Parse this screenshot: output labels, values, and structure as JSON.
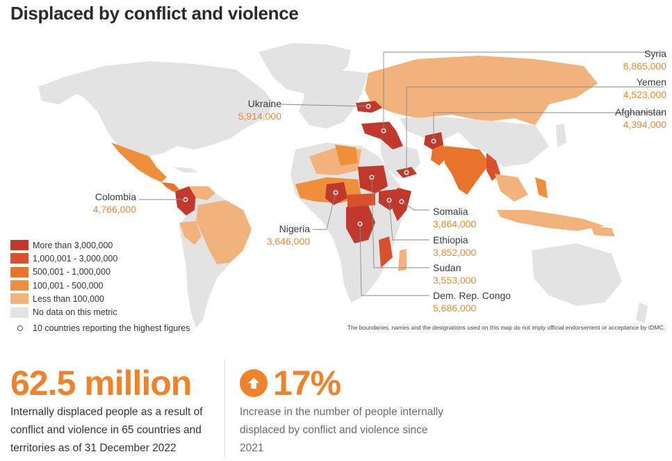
{
  "title": "Displaced by conflict and violence",
  "colors": {
    "more_than_3m": "#c0392b",
    "m1_to_3m": "#d9502c",
    "k500_to_1m": "#e8742b",
    "k100_to_500k": "#ef8f3a",
    "less_than_100k": "#f2b27c",
    "no_data": "#e3e3e3",
    "accent": "#f0832a"
  },
  "map": {
    "callouts": [
      {
        "name": "Syria",
        "value": "6,865,000"
      },
      {
        "name": "Yemen",
        "value": "4,523,000"
      },
      {
        "name": "Afghanistan",
        "value": "4,394,000"
      },
      {
        "name": "Ukraine",
        "value": "5,914,000"
      },
      {
        "name": "Colombia",
        "value": "4,766,000"
      },
      {
        "name": "Nigeria",
        "value": "3,646,000"
      },
      {
        "name": "Somalia",
        "value": "3,864,000"
      },
      {
        "name": "Ethiopia",
        "value": "3,852,000"
      },
      {
        "name": "Sudan",
        "value": "3,553,000"
      },
      {
        "name": "Dem. Rep. Congo",
        "value": "5,686,000"
      }
    ],
    "legend": [
      "More than 3,000,000",
      "1,000,001 - 3,000,000",
      "500,001 - 1,000,000",
      "100,001 - 500,000",
      "Less than 100,000",
      "No data on this metric"
    ],
    "legend_marker": "10 countries reporting the highest figures",
    "disclaimer": "The boundaries, names and the designations used on this map do not imply official endorsement or acceptance by IDMC."
  },
  "stats": {
    "total": {
      "value": "62.5 million",
      "desc": "Internally displaced people as a result of conflict and violence in 65 countries and territories as of 31 December 2022"
    },
    "increase": {
      "icon": "arrow-up-icon",
      "value": "17%",
      "desc": "Increase in the number of people internally displaced by conflict and violence since 2021"
    }
  }
}
